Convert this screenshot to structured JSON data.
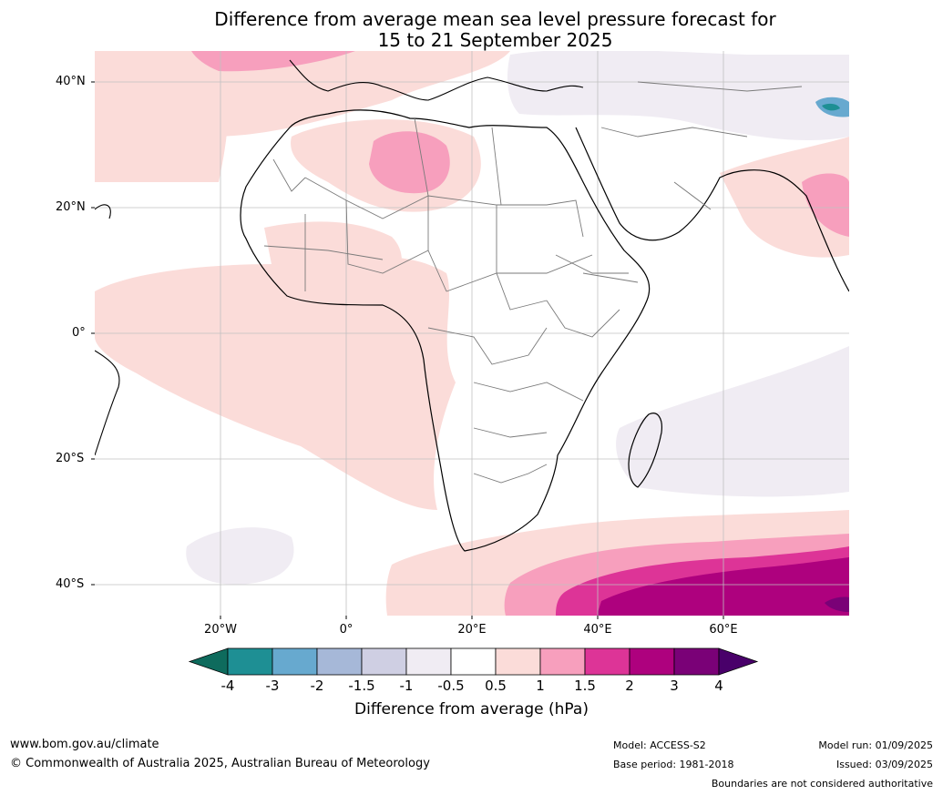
{
  "title": {
    "line1": "Difference from average mean sea level pressure forecast for",
    "line2": "15 to 21 September 2025"
  },
  "map": {
    "lat_labels": [
      "40°N",
      "20°N",
      "0°",
      "20°S",
      "40°S"
    ],
    "lon_labels": [
      "20°W",
      "0°",
      "20°E",
      "40°E",
      "60°E"
    ],
    "extent": {
      "lon": [
        -40,
        80
      ],
      "lat": [
        -45,
        45
      ]
    }
  },
  "colorbar": {
    "ticks": [
      "-4",
      "-3",
      "-2",
      "-1.5",
      "-1",
      "-0.5",
      "0.5",
      "1",
      "1.5",
      "2",
      "3",
      "4"
    ],
    "colors": [
      "#0e6b5d",
      "#1e8f94",
      "#67a9cf",
      "#a6b8d8",
      "#cfcfe3",
      "#f0ecf3",
      "#ffffff",
      "#fbdcd9",
      "#f79fbd",
      "#dd3497",
      "#ae017e",
      "#7a0177",
      "#49006a"
    ],
    "label": "Difference from average (hPa)"
  },
  "footer": {
    "website": "www.bom.gov.au/climate",
    "copyright": "© Commonwealth of Australia 2025, Australian Bureau of Meteorology",
    "model": "Model: ACCESS-S2",
    "base_period": "Base period: 1981-2018",
    "model_run": "Model run: 01/09/2025",
    "issued": "Issued: 03/09/2025",
    "boundaries": "Boundaries are not considered authoritative"
  }
}
